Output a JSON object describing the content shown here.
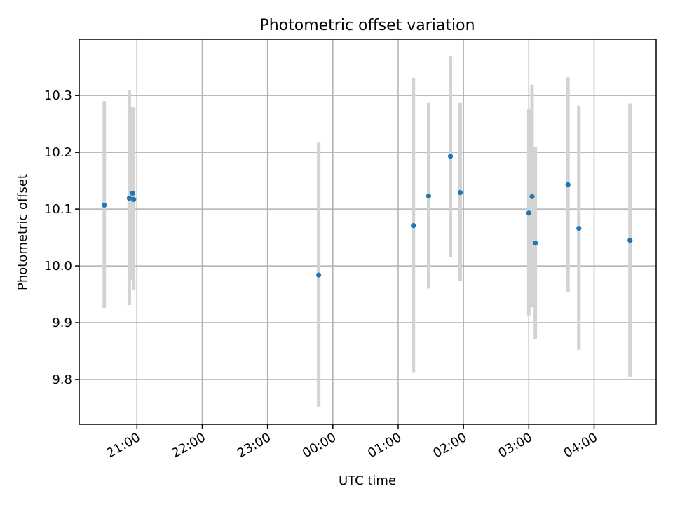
{
  "chart_data": {
    "type": "scatter",
    "title": "Photometric offset variation",
    "xlabel": "UTC time",
    "ylabel": "Photometric offset",
    "x_tick_labels": [
      "21:00",
      "22:00",
      "23:00",
      "00:00",
      "01:00",
      "02:00",
      "03:00",
      "04:00"
    ],
    "y_tick_labels": [
      "9.8",
      "9.9",
      "10.0",
      "10.1",
      "10.2",
      "10.3"
    ],
    "y_ticks": [
      9.8,
      9.9,
      10.0,
      10.1,
      10.2,
      10.3
    ],
    "x_start": "20:00",
    "xlim": [
      "20:07",
      "04:57"
    ],
    "ylim": [
      9.721,
      10.399
    ],
    "grid": true,
    "colors": {
      "points": "#1f77b4",
      "errorbars": "#d3d3d3"
    },
    "series": [
      {
        "points": [
          {
            "x": "20:30",
            "y": 10.107,
            "ylow": 9.926,
            "yhigh": 10.29
          },
          {
            "x": "20:53",
            "y": 10.119,
            "ylow": 9.931,
            "yhigh": 10.309
          },
          {
            "x": "20:56",
            "y": 10.128,
            "ylow": 9.976,
            "yhigh": 10.28
          },
          {
            "x": "20:57",
            "y": 10.117,
            "ylow": 9.958,
            "yhigh": 10.278
          },
          {
            "x": "23:47",
            "y": 9.984,
            "ylow": 9.752,
            "yhigh": 10.217
          },
          {
            "x": "01:14",
            "y": 10.071,
            "ylow": 9.812,
            "yhigh": 10.331
          },
          {
            "x": "01:28",
            "y": 10.123,
            "ylow": 9.96,
            "yhigh": 10.287
          },
          {
            "x": "01:48",
            "y": 10.193,
            "ylow": 10.016,
            "yhigh": 10.369
          },
          {
            "x": "01:57",
            "y": 10.129,
            "ylow": 9.973,
            "yhigh": 10.287
          },
          {
            "x": "03:00",
            "y": 10.093,
            "ylow": 9.913,
            "yhigh": 10.276
          },
          {
            "x": "03:03",
            "y": 10.122,
            "ylow": 9.927,
            "yhigh": 10.319
          },
          {
            "x": "03:06",
            "y": 10.04,
            "ylow": 9.871,
            "yhigh": 10.21
          },
          {
            "x": "03:36",
            "y": 10.143,
            "ylow": 9.953,
            "yhigh": 10.332
          },
          {
            "x": "03:46",
            "y": 10.066,
            "ylow": 9.852,
            "yhigh": 10.282
          },
          {
            "x": "04:33",
            "y": 10.045,
            "ylow": 9.805,
            "yhigh": 10.286
          }
        ]
      }
    ]
  }
}
